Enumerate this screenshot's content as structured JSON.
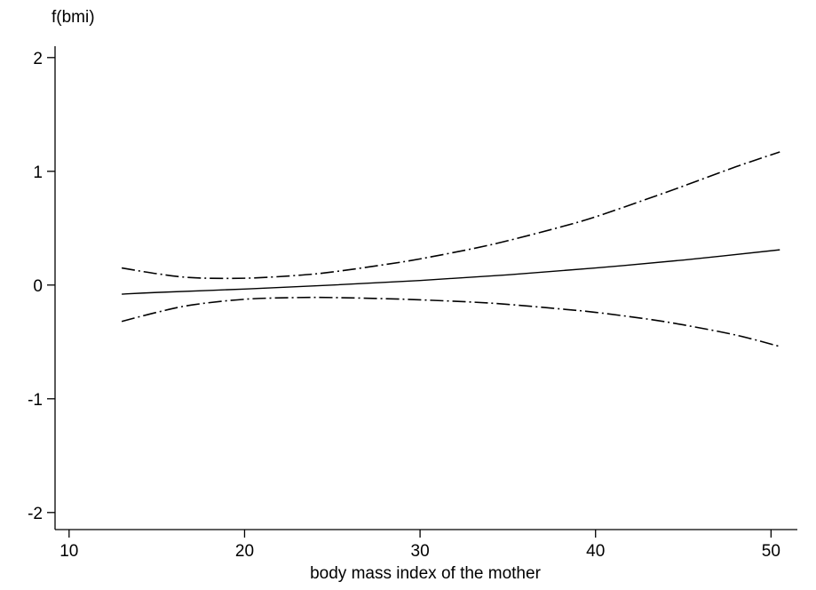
{
  "chart_data": {
    "type": "line",
    "ylabel": "f(bmi)",
    "xlabel": "body mass index of the mother",
    "xlim": [
      9.2,
      51.5
    ],
    "ylim": [
      -2.15,
      2.1
    ],
    "x_ticks": [
      10,
      20,
      30,
      40,
      50
    ],
    "y_ticks": [
      -2,
      -1,
      0,
      1,
      2
    ],
    "grid": false,
    "legend": false,
    "line_color": "#000000",
    "series": [
      {
        "style": "solid",
        "x": [
          13,
          15,
          20,
          25,
          30,
          35,
          40,
          45,
          50.5
        ],
        "y": [
          -0.08,
          -0.065,
          -0.035,
          0.0,
          0.04,
          0.09,
          0.15,
          0.22,
          0.31
        ]
      },
      {
        "style": "dash-dot",
        "x": [
          13,
          15,
          17,
          20,
          23,
          25,
          28,
          30,
          33,
          35,
          38,
          40,
          43,
          45,
          48,
          50.5
        ],
        "y": [
          0.15,
          0.1,
          0.065,
          0.06,
          0.085,
          0.115,
          0.18,
          0.23,
          0.32,
          0.39,
          0.51,
          0.6,
          0.76,
          0.87,
          1.04,
          1.17
        ]
      },
      {
        "style": "dash-dot",
        "x": [
          13,
          15,
          17,
          20,
          23,
          25,
          28,
          30,
          33,
          35,
          38,
          40,
          43,
          45,
          48,
          50.5
        ],
        "y": [
          -0.32,
          -0.24,
          -0.175,
          -0.125,
          -0.11,
          -0.11,
          -0.12,
          -0.13,
          -0.15,
          -0.17,
          -0.21,
          -0.24,
          -0.3,
          -0.35,
          -0.44,
          -0.54
        ]
      }
    ]
  }
}
